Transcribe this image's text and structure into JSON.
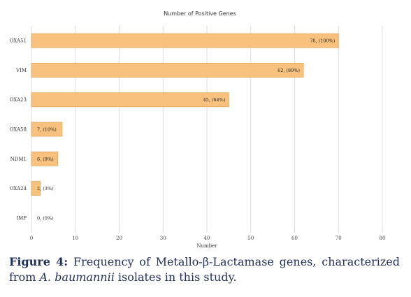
{
  "chart_data": {
    "type": "bar",
    "orientation": "horizontal",
    "title": "Number of Positive Genes",
    "xlabel": "Number",
    "ylabel": "",
    "xlim": [
      0,
      80
    ],
    "x_ticks": [
      "0",
      "10",
      "20",
      "30",
      "40",
      "50",
      "60",
      "70",
      "80"
    ],
    "categories": [
      "OXA51",
      "VIM",
      "OXA23",
      "OXA58",
      "NDM1",
      "OXA24",
      "IMP"
    ],
    "values": [
      70,
      62,
      45,
      7,
      6,
      2,
      0
    ],
    "data_labels": [
      "70, (100%)",
      "62, (89%)",
      "45, (64%)",
      "7, (10%)",
      "6, (9%)",
      "2, (3%)",
      "0, (0%)"
    ],
    "grid": true,
    "legend": "none",
    "bar_color": "#f8c27e",
    "bar_edge_color": "#e2a557"
  },
  "caption": {
    "label": "Figure 4:",
    "text_before": " Frequency of Metallo-β-Lactamase genes, characterized from ",
    "text_italic": "A. baumannii",
    "text_after": " isolates in this study."
  }
}
